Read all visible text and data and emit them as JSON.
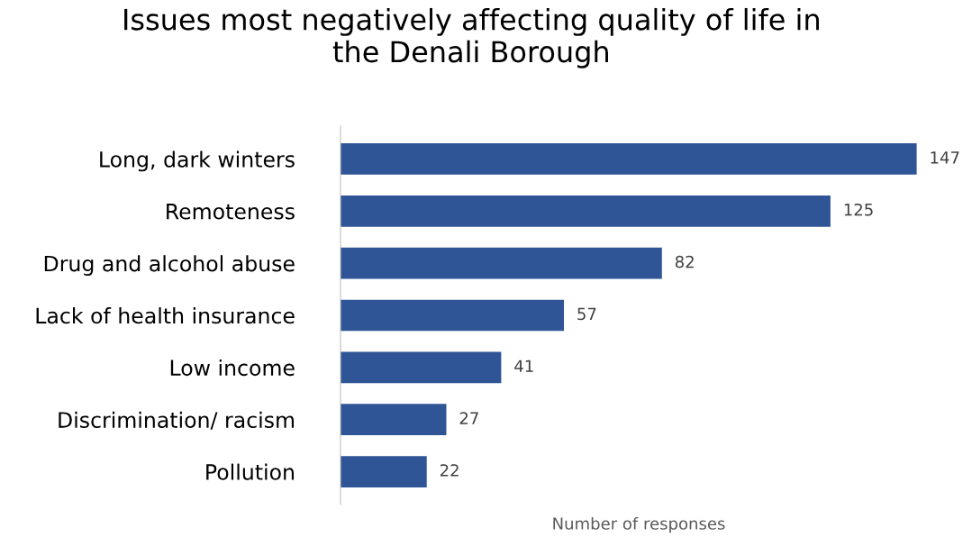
{
  "chart_data": {
    "type": "bar",
    "orientation": "horizontal",
    "title": "Issues most negatively affecting quality of life in\nthe Denali Borough",
    "xlabel": "Number of responses",
    "categories": [
      "Long, dark winters",
      "Remoteness",
      "Drug and alcohol abuse",
      "Lack of health insurance",
      "Low income",
      "Discrimination/ racism",
      "Pollution"
    ],
    "values": [
      147,
      125,
      82,
      57,
      41,
      27,
      22
    ],
    "color": "#2f5597",
    "data_labels": true,
    "grid": false,
    "legend": false
  }
}
